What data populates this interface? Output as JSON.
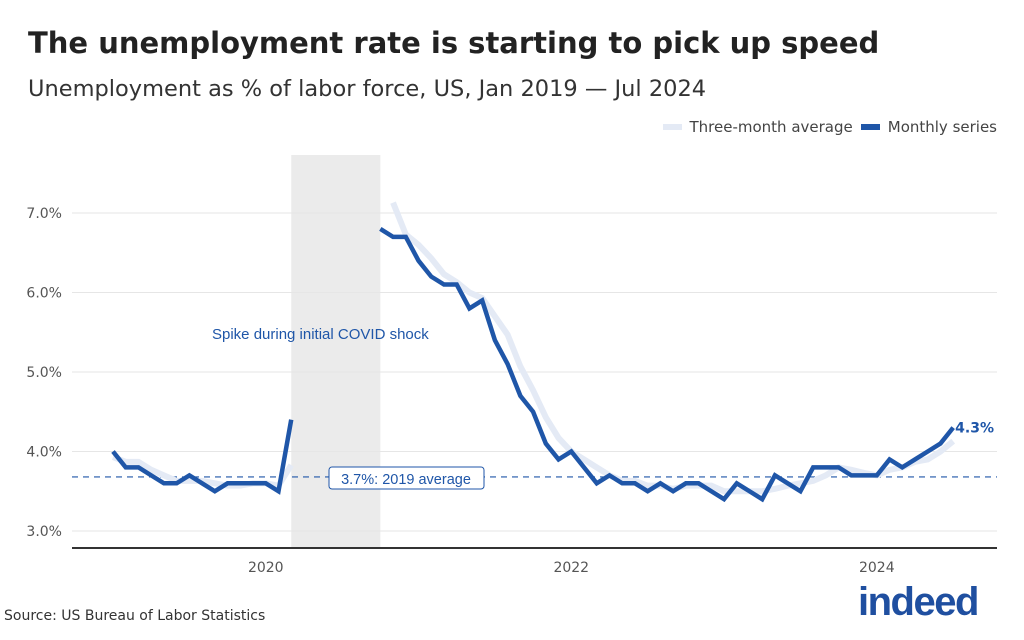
{
  "header": {
    "title": "The unemployment rate is starting to pick up speed",
    "subtitle": "Unemployment as % of labor force, US, Jan 2019 — Jul 2024"
  },
  "legend": {
    "avg_label": "Three-month average",
    "monthly_label": "Monthly series"
  },
  "footer": {
    "source": "Source: US Bureau of Labor Statistics",
    "logo": "indeed"
  },
  "colors": {
    "monthly": "#1f56a8",
    "average": "#e4eaf5",
    "shade": "#ebebeb",
    "grid": "#e6e6e6"
  },
  "chart_data": {
    "type": "line",
    "start_month": "2019-01",
    "ylim": [
      2.8,
      7.7
    ],
    "y_ticks": [
      3,
      4,
      5,
      6,
      7
    ],
    "y_tick_labels": [
      "3.0%",
      "4.0%",
      "5.0%",
      "6.0%",
      "7.0%"
    ],
    "x_tick_labels": [
      "2020",
      "2022",
      "2024"
    ],
    "grid": true,
    "legend_position": "top-right",
    "series": [
      {
        "name": "Monthly series",
        "values": [
          4.0,
          3.8,
          3.8,
          3.7,
          3.6,
          3.6,
          3.7,
          3.6,
          3.5,
          3.6,
          3.6,
          3.6,
          3.6,
          3.5,
          4.4,
          null,
          null,
          null,
          null,
          null,
          null,
          6.8,
          6.7,
          6.7,
          6.4,
          6.2,
          6.1,
          6.1,
          5.8,
          5.9,
          5.4,
          5.1,
          4.7,
          4.5,
          4.1,
          3.9,
          4.0,
          3.8,
          3.6,
          3.7,
          3.6,
          3.6,
          3.5,
          3.6,
          3.5,
          3.6,
          3.6,
          3.5,
          3.4,
          3.6,
          3.5,
          3.4,
          3.7,
          3.6,
          3.5,
          3.8,
          3.8,
          3.8,
          3.7,
          3.7,
          3.7,
          3.9,
          3.8,
          3.9,
          4.0,
          4.1,
          4.3
        ]
      },
      {
        "name": "Three-month average",
        "values": [
          3.93,
          3.87,
          3.87,
          3.77,
          3.7,
          3.63,
          3.63,
          3.63,
          3.6,
          3.57,
          3.57,
          3.6,
          3.6,
          3.57,
          3.83,
          null,
          null,
          null,
          null,
          null,
          null,
          null,
          7.13,
          6.73,
          6.6,
          6.43,
          6.23,
          6.13,
          6.0,
          5.93,
          5.7,
          5.47,
          5.07,
          4.77,
          4.43,
          4.17,
          4.0,
          3.9,
          3.8,
          3.7,
          3.63,
          3.63,
          3.57,
          3.57,
          3.53,
          3.57,
          3.57,
          3.57,
          3.5,
          3.5,
          3.5,
          3.5,
          3.53,
          3.57,
          3.6,
          3.63,
          3.7,
          3.8,
          3.77,
          3.73,
          3.7,
          3.77,
          3.8,
          3.87,
          3.9,
          4.0,
          4.13
        ]
      }
    ],
    "shaded_period": [
      "2020-03",
      "2020-10"
    ],
    "annotations": {
      "covid": "Spike during initial COVID shock",
      "reference_value": 3.68,
      "reference_label": "3.7%: 2019 average",
      "end_label": "4.3%"
    }
  }
}
